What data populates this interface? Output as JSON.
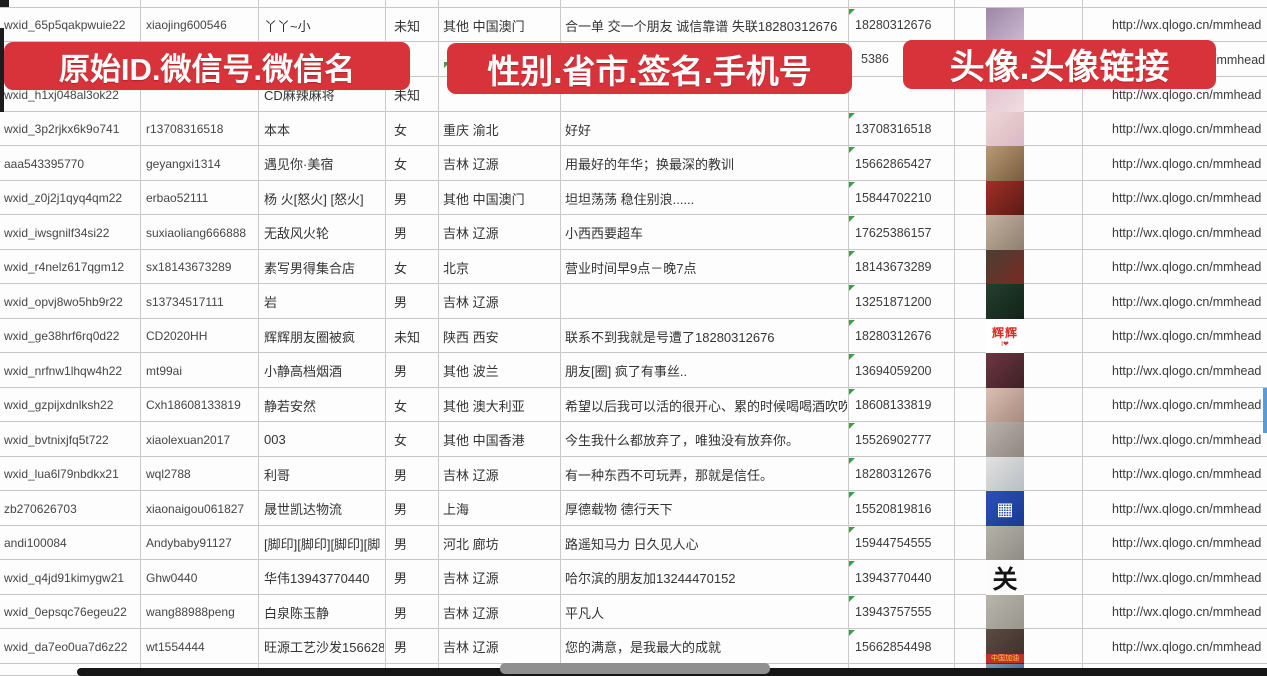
{
  "banners": {
    "b1": "原始ID.微信号.微信名",
    "b2": "性别.省市.签名.手机号",
    "b3": "头像.头像链接"
  },
  "fragments": {
    "phone_partial": "5386",
    "link_partial": "/mmhead"
  },
  "colors": {
    "banner_red": "#d8333a",
    "grid_line": "#c9c9c9",
    "error_marker_green": "#3f9e44",
    "scrollbar_black": "#161616",
    "scrollbar_thumb_gray": "#8f8f8f"
  },
  "rows": [
    {
      "row": 1,
      "id": "wxid_65p5qakpwuie22",
      "wx": "xiaojing600546",
      "name": "丫丫~小",
      "gender": "未知",
      "region": "其他 中国澳门",
      "sig": "合一单 交一个朋友 诚信靠谱 失联18280312676",
      "phone": "18280312676",
      "link": "http://wx.qlogo.cn/mmhead",
      "avatar": {
        "kind": "photo",
        "c1": "#9b87a6",
        "c2": "#cdb9cf",
        "text": "",
        "label": ""
      }
    },
    {
      "row": 3,
      "id": "wxid_h1xj048al3ok22",
      "wx": "",
      "name": "CD麻辣麻将",
      "gender": "未知",
      "region": "",
      "sig": "",
      "phone": "",
      "link": "http://wx.qlogo.cn/mmhead",
      "avatar": {
        "kind": "photo",
        "c1": "#e3bfcb",
        "c2": "#f0dde2",
        "text": "",
        "label": ""
      }
    },
    {
      "row": 4,
      "id": "wxid_3p2rjkx6k9o741",
      "wx": "r13708316518",
      "name": "本本",
      "gender": "女",
      "region": "重庆 渝北",
      "sig": "好好",
      "phone": "13708316518",
      "link": "http://wx.qlogo.cn/mmhead",
      "avatar": {
        "kind": "photo",
        "c1": "#efd6d6",
        "c2": "#d9b8c4",
        "text": "",
        "label": ""
      }
    },
    {
      "row": 5,
      "id": "aaa543395770",
      "wx": "geyangxi1314",
      "name": "遇见你·美宿",
      "gender": "女",
      "region": "吉林 辽源",
      "sig": "用最好的年华；换最深的教训",
      "phone": "15662865427",
      "link": "http://wx.qlogo.cn/mmhead",
      "avatar": {
        "kind": "photo",
        "c1": "#b99a76",
        "c2": "#7a5c3e",
        "text": "",
        "label": ""
      }
    },
    {
      "row": 6,
      "id": "wxid_z0j2j1qyq4qm22",
      "wx": "erbao52111",
      "name": "杨 火[怒火] [怒火]",
      "gender": "男",
      "region": "其他 中国澳门",
      "sig": "坦坦荡荡 稳住别浪......",
      "phone": "15844702210",
      "link": "http://wx.qlogo.cn/mmhead",
      "avatar": {
        "kind": "photo",
        "c1": "#a03028",
        "c2": "#5c1a14",
        "text": "",
        "label": ""
      }
    },
    {
      "row": 7,
      "id": "wxid_iwsgnilf34si22",
      "wx": "suxiaoliang666888",
      "name": "无敌风火轮",
      "gender": "男",
      "region": "吉林 辽源",
      "sig": "小西西要超车",
      "phone": "17625386157",
      "link": "http://wx.qlogo.cn/mmhead",
      "avatar": {
        "kind": "photo",
        "c1": "#c3b2a0",
        "c2": "#8f7f6f",
        "text": "",
        "label": ""
      }
    },
    {
      "row": 8,
      "id": "wxid_r4nelz617qgm12",
      "wx": "sx18143673289",
      "name": "素写男得集合店",
      "gender": "女",
      "region": "北京",
      "sig": "营业时间早9点－晚7点",
      "phone": "18143673289",
      "link": "http://wx.qlogo.cn/mmhead",
      "avatar": {
        "kind": "photo",
        "c1": "#4a3f35",
        "c2": "#7a2a22",
        "text": "",
        "label": ""
      }
    },
    {
      "row": 9,
      "id": "wxid_opvj8wo5hb9r22",
      "wx": "s13734517111",
      "name": "岩",
      "gender": "男",
      "region": "吉林 辽源",
      "sig": "",
      "phone": "13251871200",
      "link": "http://wx.qlogo.cn/mmhead",
      "avatar": {
        "kind": "photo",
        "c1": "#24402e",
        "c2": "#122218",
        "text": "",
        "label": ""
      }
    },
    {
      "row": 10,
      "id": "wxid_ge38hrf6rq0d22",
      "wx": "CD2020HH",
      "name": "辉辉朋友圈被疯",
      "gender": "未知",
      "region": "陕西 西安",
      "sig": "联系不到我就是号遭了18280312676",
      "phone": "18280312676",
      "link": "http://wx.qlogo.cn/mmhead",
      "avatar": {
        "kind": "text-red",
        "c1": "",
        "c2": "",
        "text": "辉辉",
        "label": "I❤"
      }
    },
    {
      "row": 11,
      "id": "wxid_nrfnw1lhqw4h22",
      "wx": "mt99ai",
      "name": "小静高档烟酒",
      "gender": "男",
      "region": "其他 波兰",
      "sig": "朋友[圈] 疯了有事丝..",
      "phone": "13694059200",
      "link": "http://wx.qlogo.cn/mmhead",
      "avatar": {
        "kind": "photo",
        "c1": "#6e3640",
        "c2": "#3f2026",
        "text": "",
        "label": ""
      }
    },
    {
      "row": 12,
      "id": "wxid_gzpijxdnlksh22",
      "wx": "Cxh18608133819",
      "name": "静若安然",
      "gender": "女",
      "region": "其他 澳大利亚",
      "sig": "希望以后我可以活的很开心、累的时候喝喝酒吹吹[",
      "phone": "18608133819",
      "link": "http://wx.qlogo.cn/mmhead",
      "avatar": {
        "kind": "photo",
        "c1": "#d9bfb2",
        "c2": "#a98a7e",
        "text": "",
        "label": ""
      }
    },
    {
      "row": 13,
      "id": "wxid_bvtnixjfq5t722",
      "wx": "xiaolexuan2017",
      "name": "003",
      "gender": "女",
      "region": "其他 中国香港",
      "sig": "今生我什么都放弃了，唯独没有放弃你。",
      "phone": "15526902777",
      "link": "http://wx.qlogo.cn/mmhead",
      "avatar": {
        "kind": "photo",
        "c1": "#bdb3ae",
        "c2": "#8f8680",
        "text": "",
        "label": ""
      }
    },
    {
      "row": 14,
      "id": "wxid_lua6l79nbdkx21",
      "wx": "wql2788",
      "name": "利哥",
      "gender": "男",
      "region": "吉林 辽源",
      "sig": "有一种东西不可玩弄，那就是信任。",
      "phone": "18280312676",
      "link": "http://wx.qlogo.cn/mmhead",
      "avatar": {
        "kind": "photo",
        "c1": "#e2e2e0",
        "c2": "#b9bdc2",
        "text": "",
        "label": ""
      }
    },
    {
      "row": 15,
      "id": "zb270626703",
      "wx": "xiaonaigou061827",
      "name": "晟世凯达物流",
      "gender": "男",
      "region": "上海",
      "sig": "厚德载物 德行天下",
      "phone": "15520819816",
      "link": "http://wx.qlogo.cn/mmhead",
      "avatar": {
        "kind": "qr",
        "c1": "#2b50b8",
        "c2": "#1a3a90",
        "text": "▦",
        "label": ""
      }
    },
    {
      "row": 16,
      "id": "andi100084",
      "wx": "Andybaby91127",
      "name": "[脚印][脚印][脚印][脚",
      "gender": "男",
      "region": "河北 廊坊",
      "sig": "路遥知马力 日久见人心",
      "phone": "15944754555",
      "link": "http://wx.qlogo.cn/mmhead",
      "avatar": {
        "kind": "photo",
        "c1": "#b5b2a8",
        "c2": "#8e8c84",
        "text": "",
        "label": ""
      }
    },
    {
      "row": 17,
      "id": "wxid_q4jd91kimygw21",
      "wx": "Ghw0440",
      "name": "华伟13943770440",
      "gender": "男",
      "region": "吉林 辽源",
      "sig": "哈尔滨的朋友加13244470152",
      "phone": "13943770440",
      "link": "http://wx.qlogo.cn/mmhead",
      "avatar": {
        "kind": "text-ink",
        "c1": "",
        "c2": "",
        "text": "关",
        "label": ""
      }
    },
    {
      "row": 18,
      "id": "wxid_0epsqc76egeu22",
      "wx": "wang88988peng",
      "name": "白泉陈玉静",
      "gender": "男",
      "region": "吉林 辽源",
      "sig": "平凡人",
      "phone": "13943757555",
      "link": "http://wx.qlogo.cn/mmhead",
      "avatar": {
        "kind": "photo",
        "c1": "#b8b6ac",
        "c2": "#98968c",
        "text": "",
        "label": ""
      }
    },
    {
      "row": 19,
      "id": "wxid_da7eo0ua7d6z22",
      "wx": "wt1554444",
      "name": "旺源工艺沙发15662854",
      "gender": "男",
      "region": "吉林 辽源",
      "sig": "您的满意，是我最大的成就",
      "phone": "15662854498",
      "link": "http://wx.qlogo.cn/mmhead",
      "avatar": {
        "kind": "photo-label",
        "c1": "#5c4c42",
        "c2": "#3a2e28",
        "text": "",
        "label": "中国加油"
      }
    },
    {
      "row": 20,
      "id": "",
      "wx": "",
      "name": "",
      "gender": "",
      "region": "",
      "sig": "",
      "phone": "",
      "link": "",
      "avatar": {
        "kind": "photo",
        "c1": "#7a99b5",
        "c2": "#4a6a8a",
        "text": "",
        "label": ""
      }
    }
  ]
}
